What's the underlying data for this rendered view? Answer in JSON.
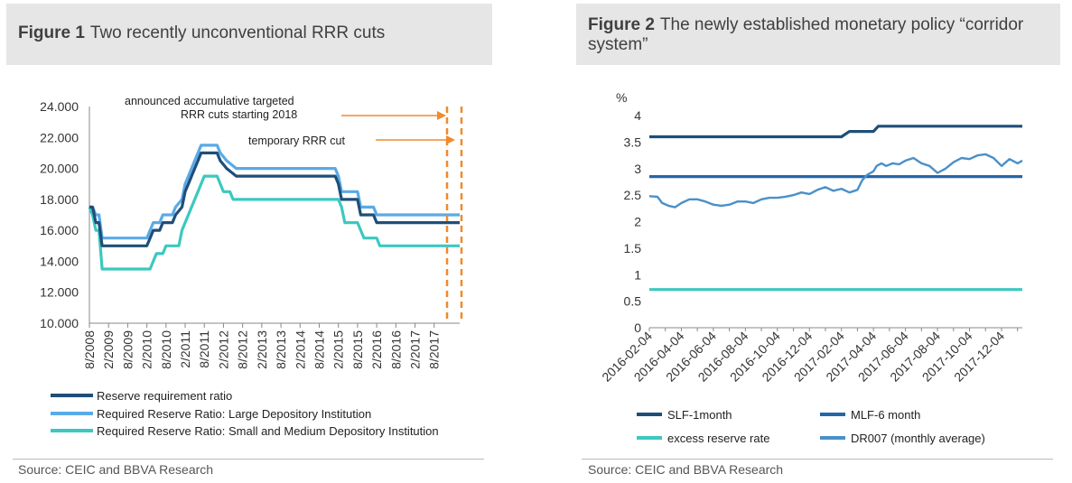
{
  "figure1": {
    "label": "Figure 1",
    "title": "Two recently unconventional RRR cuts",
    "source": "Source: CEIC and BBVA Research"
  },
  "figure2": {
    "label": "Figure 2",
    "title": "The newly established monetary policy “corridor system”",
    "source": "Source: CEIC and BBVA Research"
  },
  "chart_data": [
    {
      "type": "line",
      "title": "Two recently unconventional RRR cuts",
      "ylim": [
        10,
        24
      ],
      "yticks": [
        "10.000",
        "12.000",
        "14.000",
        "16.000",
        "18.000",
        "20.000",
        "22.000",
        "24.000"
      ],
      "xticks": [
        "8/2008",
        "2/2009",
        "8/2009",
        "2/2010",
        "8/2010",
        "2/2011",
        "8/2011",
        "2/2012",
        "8/2012",
        "2/2013",
        "8/2013",
        "2/2014",
        "8/2014",
        "2/2015",
        "8/2015",
        "2/2016",
        "8/2016",
        "2/2017",
        "8/2017"
      ],
      "x_unit": "month index from 8/2008",
      "grid": false,
      "legend_position": "bottom",
      "annotations": [
        {
          "text_line1": "announced accumulative targeted",
          "text_line2": "RRR cuts starting 2018"
        },
        {
          "text_line1": "temporary RRR cut"
        }
      ],
      "colors": {
        "rrr": "#1f4e79",
        "large": "#5aaae6",
        "small": "#3cc8c0",
        "annotation": "#f08a2a"
      },
      "series": [
        {
          "name": "Reserve requirement ratio",
          "points": [
            [
              0,
              17.5
            ],
            [
              1,
              17.5
            ],
            [
              2,
              16.5
            ],
            [
              3,
              16.5
            ],
            [
              4,
              15.0
            ],
            [
              18,
              15.0
            ],
            [
              19,
              15.5
            ],
            [
              20,
              16.0
            ],
            [
              22,
              16.0
            ],
            [
              23,
              16.5
            ],
            [
              26,
              16.5
            ],
            [
              27,
              17.0
            ],
            [
              29,
              17.5
            ],
            [
              30,
              18.5
            ],
            [
              31,
              19.0
            ],
            [
              32,
              19.5
            ],
            [
              33,
              20.0
            ],
            [
              34,
              20.5
            ],
            [
              35,
              21.0
            ],
            [
              40,
              21.0
            ],
            [
              41,
              20.5
            ],
            [
              43,
              20.0
            ],
            [
              46,
              19.5
            ],
            [
              77,
              19.5
            ],
            [
              78,
              19.0
            ],
            [
              79,
              18.0
            ],
            [
              84,
              18.0
            ],
            [
              85,
              17.0
            ],
            [
              89,
              17.0
            ],
            [
              90,
              16.5
            ],
            [
              116,
              16.5
            ]
          ]
        },
        {
          "name": "Required Reserve Ratio: Large Depository Institution",
          "points": [
            [
              0,
              17.5
            ],
            [
              1,
              17.5
            ],
            [
              2,
              17.0
            ],
            [
              3,
              17.0
            ],
            [
              4,
              15.5
            ],
            [
              18,
              15.5
            ],
            [
              19,
              16.0
            ],
            [
              20,
              16.5
            ],
            [
              22,
              16.5
            ],
            [
              23,
              17.0
            ],
            [
              26,
              17.0
            ],
            [
              27,
              17.5
            ],
            [
              29,
              18.0
            ],
            [
              30,
              19.0
            ],
            [
              31,
              19.5
            ],
            [
              32,
              20.0
            ],
            [
              33,
              20.5
            ],
            [
              34,
              21.0
            ],
            [
              35,
              21.5
            ],
            [
              40,
              21.5
            ],
            [
              41,
              21.0
            ],
            [
              43,
              20.5
            ],
            [
              46,
              20.0
            ],
            [
              77,
              20.0
            ],
            [
              78,
              19.5
            ],
            [
              79,
              18.5
            ],
            [
              84,
              18.5
            ],
            [
              85,
              17.5
            ],
            [
              89,
              17.5
            ],
            [
              90,
              17.0
            ],
            [
              116,
              17.0
            ]
          ]
        },
        {
          "name": "Required Reserve Ratio: Small and Medium Depository Institution",
          "points": [
            [
              0,
              17.5
            ],
            [
              1,
              17.0
            ],
            [
              2,
              16.0
            ],
            [
              3,
              16.0
            ],
            [
              4,
              13.5
            ],
            [
              19,
              13.5
            ],
            [
              20,
              14.0
            ],
            [
              21,
              14.5
            ],
            [
              23,
              14.5
            ],
            [
              24,
              15.0
            ],
            [
              28,
              15.0
            ],
            [
              29,
              16.0
            ],
            [
              30,
              16.5
            ],
            [
              31,
              17.0
            ],
            [
              32,
              17.5
            ],
            [
              33,
              18.0
            ],
            [
              34,
              18.5
            ],
            [
              35,
              19.0
            ],
            [
              36,
              19.5
            ],
            [
              40,
              19.5
            ],
            [
              41,
              19.0
            ],
            [
              42,
              18.5
            ],
            [
              44,
              18.5
            ],
            [
              45,
              18.0
            ],
            [
              78,
              18.0
            ],
            [
              79,
              17.5
            ],
            [
              80,
              16.5
            ],
            [
              84,
              16.5
            ],
            [
              86,
              15.5
            ],
            [
              90,
              15.5
            ],
            [
              91,
              15.0
            ],
            [
              116,
              15.0
            ]
          ]
        }
      ]
    },
    {
      "type": "line",
      "title": "The newly established monetary policy “corridor system”",
      "ylabel": "%",
      "ylim": [
        0,
        4
      ],
      "yticks": [
        "0",
        "0.5",
        "1",
        "1.5",
        "2",
        "2.5",
        "3",
        "3.5",
        "4"
      ],
      "xticks": [
        "2016-02-04",
        "2016-04-04",
        "2016-06-04",
        "2016-08-04",
        "2016-10-04",
        "2016-12-04",
        "2017-02-04",
        "2017-04-04",
        "2017-06-04",
        "2017-08-04",
        "2017-10-04",
        "2017-12-04"
      ],
      "x_unit": "months since 2016-02-04",
      "grid": false,
      "legend_position": "bottom",
      "colors": {
        "slf": "#1f4e79",
        "mlf": "#2466a8",
        "excess": "#3cc8c0",
        "dr007": "#4a90c8"
      },
      "series": [
        {
          "name": "SLF-1month",
          "points": [
            [
              0,
              3.6
            ],
            [
              12,
              3.6
            ],
            [
              12.5,
              3.7
            ],
            [
              14,
              3.7
            ],
            [
              14.3,
              3.8
            ],
            [
              23.3,
              3.8
            ]
          ]
        },
        {
          "name": "MLF-6 month",
          "points": [
            [
              0,
              2.85
            ],
            [
              23.3,
              2.85
            ]
          ]
        },
        {
          "name": "excess reserve rate",
          "points": [
            [
              0,
              0.72
            ],
            [
              23.3,
              0.72
            ]
          ]
        },
        {
          "name": "DR007 (monthly average)",
          "points": [
            [
              0,
              2.48
            ],
            [
              0.5,
              2.47
            ],
            [
              0.8,
              2.35
            ],
            [
              1.2,
              2.3
            ],
            [
              1.6,
              2.27
            ],
            [
              2.0,
              2.35
            ],
            [
              2.5,
              2.42
            ],
            [
              3.0,
              2.42
            ],
            [
              3.5,
              2.38
            ],
            [
              4.0,
              2.32
            ],
            [
              4.5,
              2.3
            ],
            [
              5.0,
              2.32
            ],
            [
              5.5,
              2.38
            ],
            [
              6.0,
              2.38
            ],
            [
              6.5,
              2.35
            ],
            [
              7.0,
              2.42
            ],
            [
              7.5,
              2.45
            ],
            [
              8.0,
              2.45
            ],
            [
              8.5,
              2.47
            ],
            [
              9.0,
              2.5
            ],
            [
              9.5,
              2.55
            ],
            [
              10.0,
              2.52
            ],
            [
              10.5,
              2.6
            ],
            [
              11.0,
              2.65
            ],
            [
              11.5,
              2.58
            ],
            [
              12.0,
              2.62
            ],
            [
              12.5,
              2.55
            ],
            [
              13.0,
              2.6
            ],
            [
              13.3,
              2.78
            ],
            [
              13.6,
              2.88
            ],
            [
              14.0,
              2.95
            ],
            [
              14.2,
              3.05
            ],
            [
              14.5,
              3.1
            ],
            [
              14.8,
              3.05
            ],
            [
              15.2,
              3.1
            ],
            [
              15.6,
              3.08
            ],
            [
              16.0,
              3.15
            ],
            [
              16.5,
              3.2
            ],
            [
              17.0,
              3.1
            ],
            [
              17.5,
              3.05
            ],
            [
              18.0,
              2.92
            ],
            [
              18.5,
              3.0
            ],
            [
              19.0,
              3.12
            ],
            [
              19.5,
              3.2
            ],
            [
              20.0,
              3.18
            ],
            [
              20.5,
              3.25
            ],
            [
              21.0,
              3.27
            ],
            [
              21.5,
              3.2
            ],
            [
              22.0,
              3.05
            ],
            [
              22.5,
              3.18
            ],
            [
              23.0,
              3.1
            ],
            [
              23.3,
              3.15
            ]
          ]
        }
      ]
    }
  ]
}
